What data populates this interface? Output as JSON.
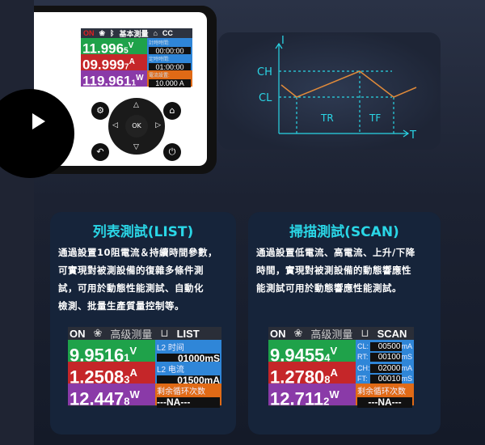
{
  "device": {
    "lcd": {
      "status": "ON",
      "mode": "基本測量",
      "type": "CC",
      "voltage": "11.996",
      "voltage_sub": "5",
      "voltage_unit": "V",
      "current": "09.999",
      "current_sub": "7",
      "current_unit": "A",
      "power": "119.961",
      "power_sub": "1",
      "power_unit": "W",
      "timer_label": "計時時間:",
      "timer_value": "00:00:00",
      "countdown_label": "定時時間:",
      "countdown_value": "01:00:00",
      "current_set_label": "電流設置:",
      "current_set_value": "10.000",
      "current_set_unit": "A"
    },
    "ok_label": "OK"
  },
  "graph": {
    "y_axis": "I",
    "x_axis": "T",
    "ch": "CH",
    "cl": "CL",
    "tr": "TR",
    "tf": "TF",
    "line_color": "#e08a3a",
    "axis_color": "#2ad6e6"
  },
  "list_card": {
    "title": "列表測試(LIST)",
    "lines": [
      "通過設置10阻電流＆持續時間參數，",
      "可實現對被測設備的復雜多條件測",
      "試，可用於動態性能測試、自動化",
      "檢測、批量生產質量控制等。"
    ],
    "screen": {
      "status": "ON",
      "mode": "高级测量",
      "type": "LIST",
      "voltage": "9.9516",
      "voltage_sub": "1",
      "voltage_unit": "V",
      "current": "1.2508",
      "current_sub": "3",
      "current_unit": "A",
      "power": "12.447",
      "power_sub": "8",
      "power_unit": "W",
      "time_label": "L2 时间",
      "time_value": "01000",
      "time_unit": "mS",
      "cur_label": "L2 电流",
      "cur_value": "01500",
      "cur_unit": "mA",
      "loops_label": "剩余循环次数",
      "loops_value": "---NA---"
    }
  },
  "scan_card": {
    "title": "掃描測試(SCAN)",
    "lines": [
      "通過設置低電流、高電流、上升/下降",
      "時間，實現對被測設備的動態響應性",
      "能測試可用於動態響應性能測試。"
    ],
    "screen": {
      "status": "ON",
      "mode": "高级测量",
      "type": "SCAN",
      "voltage": "9.9455",
      "voltage_sub": "4",
      "voltage_unit": "V",
      "current": "1.2780",
      "current_sub": "8",
      "current_unit": "A",
      "power": "12.711",
      "power_sub": "2",
      "power_unit": "W",
      "params": [
        {
          "k": "CL:",
          "v": "00500",
          "u": "mA"
        },
        {
          "k": "RT:",
          "v": "00100",
          "u": "mS"
        },
        {
          "k": "CH:",
          "v": "02000",
          "u": "mA"
        },
        {
          "k": "FT:",
          "v": "00010",
          "u": "mS"
        }
      ],
      "loops_label": "剩余循环次数",
      "loops_value": "---NA---"
    }
  }
}
